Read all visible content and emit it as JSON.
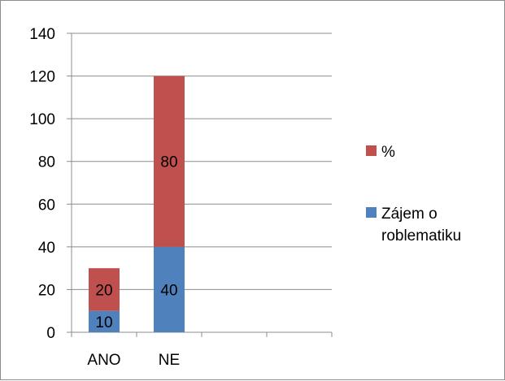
{
  "chart_data": {
    "type": "bar",
    "stacked": true,
    "categories": [
      "ANO",
      "NE",
      "",
      ""
    ],
    "series": [
      {
        "name": "Zájem o roblematiku",
        "values": [
          10,
          40,
          null,
          null
        ],
        "color": "#4f81bd"
      },
      {
        "name": "%",
        "values": [
          20,
          80,
          null,
          null
        ],
        "color": "#c0504d"
      }
    ],
    "ylim": [
      0,
      140
    ],
    "yticks": [
      0,
      20,
      40,
      60,
      80,
      100,
      120,
      140
    ],
    "grid": true,
    "legend_position": "right",
    "legend": [
      {
        "lines": [
          "%"
        ],
        "color": "#c0504d"
      },
      {
        "lines": [
          "Zájem o",
          "roblematiku"
        ],
        "color": "#4f81bd"
      }
    ]
  }
}
